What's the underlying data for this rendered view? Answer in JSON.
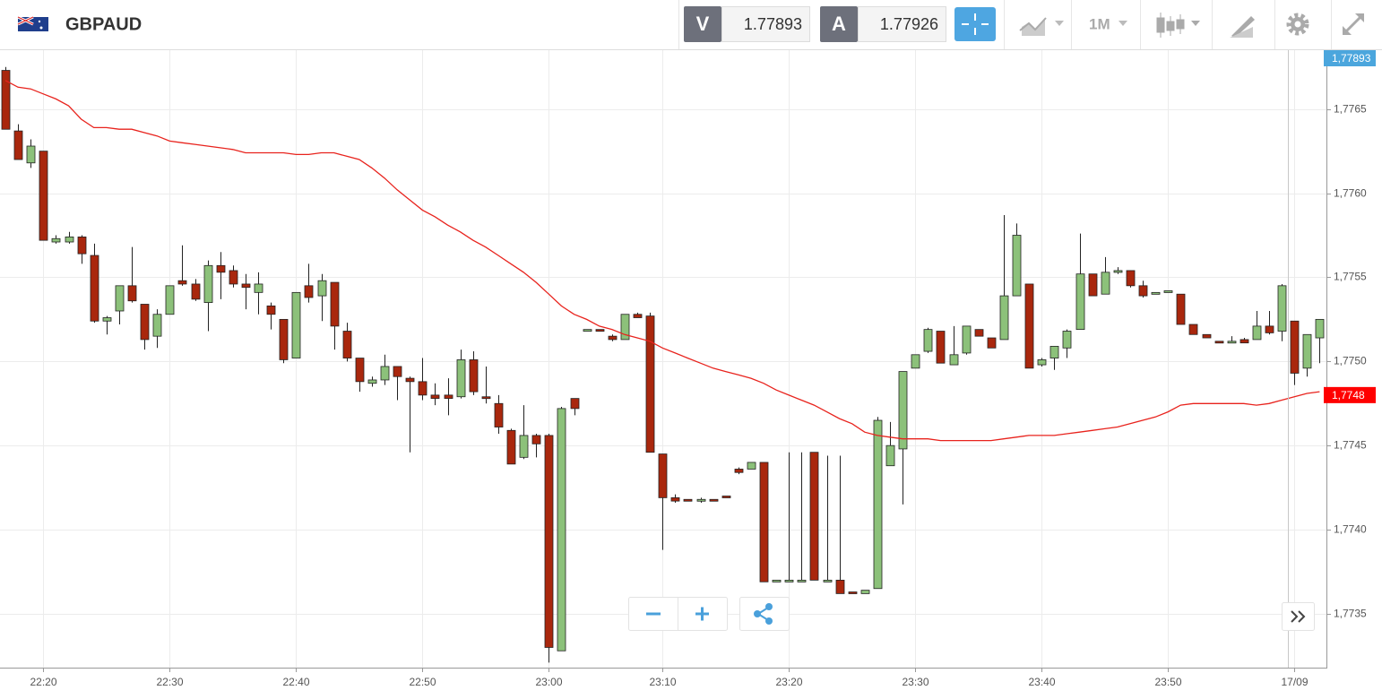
{
  "toolbar": {
    "symbol": "GBPAUD",
    "bid_label": "V",
    "bid": 1.77893,
    "ask_label": "A",
    "ask": 1.77926,
    "timeframe": "1M"
  },
  "chart_data": {
    "type": "candlestick",
    "categories": [
      null,
      null,
      null,
      "22:20",
      null,
      null,
      null,
      null,
      null,
      null,
      null,
      null,
      null,
      "22:30",
      null,
      null,
      null,
      null,
      null,
      null,
      null,
      null,
      null,
      "22:40",
      null,
      null,
      null,
      null,
      null,
      null,
      null,
      null,
      null,
      "22:50",
      null,
      null,
      null,
      null,
      null,
      null,
      null,
      null,
      null,
      "23:00",
      null,
      null,
      null,
      null,
      null,
      null,
      null,
      null,
      "23:10",
      null,
      null,
      null,
      null,
      null,
      null,
      null,
      null,
      null,
      "23:20",
      null,
      null,
      null,
      null,
      null,
      null,
      null,
      null,
      null,
      "23:30",
      null,
      null,
      null,
      null,
      null,
      null,
      null,
      null,
      null,
      "23:40",
      null,
      null,
      null,
      null,
      null,
      null,
      null,
      null,
      null,
      "23:50",
      null,
      null,
      null,
      null,
      null,
      null,
      null,
      null,
      null,
      "17/09",
      null,
      null
    ],
    "open": [
      1.77673,
      1.77637,
      1.77618,
      1.77625,
      1.77571,
      1.77571,
      1.77574,
      1.77563,
      1.77524,
      1.7753,
      1.77545,
      1.77534,
      1.77515,
      1.77528,
      1.77548,
      1.77546,
      1.77535,
      1.77557,
      1.77554,
      1.77546,
      1.77541,
      1.77533,
      1.77525,
      1.77502,
      1.77545,
      1.77539,
      1.77547,
      1.77518,
      1.77502,
      1.77487,
      1.77489,
      1.77497,
      1.7749,
      1.77488,
      1.7748,
      1.7748,
      1.77479,
      1.77501,
      1.77479,
      1.77475,
      1.77459,
      1.77443,
      1.77456,
      1.77456,
      1.77328,
      1.77478,
      1.77519,
      1.77519,
      1.77515,
      1.77513,
      1.77528,
      1.77527,
      1.77445,
      1.77419,
      1.77418,
      1.77417,
      1.77418,
      1.7742,
      1.77436,
      1.77436,
      1.7744,
      1.77369,
      1.7737,
      1.7737,
      1.77446,
      1.7737,
      1.7737,
      1.77363,
      1.77362,
      1.77365,
      1.77438,
      1.77448,
      1.77496,
      1.77506,
      1.77518,
      1.77498,
      1.77505,
      1.77519,
      1.77514,
      1.77513,
      1.77539,
      1.77546,
      1.77498,
      1.77502,
      1.77508,
      1.77519,
      1.77552,
      1.7754,
      1.77553,
      1.77554,
      1.77545,
      1.7754,
      1.77541,
      1.7754,
      1.77522,
      1.77516,
      1.77512,
      1.77511,
      1.77513,
      1.77513,
      1.77521,
      1.77518,
      1.77524,
      1.77496,
      1.77514
    ],
    "high": [
      1.77675,
      1.77641,
      1.77632,
      1.77625,
      1.77575,
      1.77577,
      1.77575,
      1.7757,
      1.77527,
      1.77545,
      1.77568,
      1.77534,
      1.77531,
      1.77545,
      1.77569,
      1.77549,
      1.7756,
      1.77565,
      1.77557,
      1.77552,
      1.77553,
      1.77535,
      1.77525,
      1.77541,
      1.77558,
      1.77552,
      1.77547,
      1.77523,
      1.77502,
      1.77491,
      1.77504,
      1.77497,
      1.77491,
      1.77502,
      1.77487,
      1.7749,
      1.77507,
      1.77506,
      1.77497,
      1.7748,
      1.7746,
      1.77474,
      1.77457,
      1.77457,
      1.77473,
      1.77478,
      1.77519,
      1.77519,
      1.77516,
      1.77528,
      1.77529,
      1.77529,
      1.77445,
      1.77421,
      1.77418,
      1.77419,
      1.77418,
      1.7742,
      1.77437,
      1.7744,
      1.7744,
      1.7737,
      1.77446,
      1.77446,
      1.77446,
      1.77444,
      1.77444,
      1.77363,
      1.77364,
      1.77467,
      1.77464,
      1.77494,
      1.77504,
      1.7752,
      1.77518,
      1.77521,
      1.77521,
      1.77519,
      1.77514,
      1.77587,
      1.77582,
      1.77546,
      1.77502,
      1.77509,
      1.77519,
      1.77576,
      1.77552,
      1.77562,
      1.77556,
      1.77554,
      1.77548,
      1.77541,
      1.77542,
      1.7754,
      1.77522,
      1.77516,
      1.77512,
      1.77515,
      1.77514,
      1.7753,
      1.7753,
      1.77546,
      1.77524,
      1.77516,
      1.77525
    ],
    "low": [
      1.77638,
      1.7762,
      1.77615,
      1.77572,
      1.7757,
      1.7757,
      1.77558,
      1.77523,
      1.77516,
      1.77522,
      1.77535,
      1.77507,
      1.77508,
      1.77528,
      1.77545,
      1.77536,
      1.77518,
      1.77537,
      1.77544,
      1.77531,
      1.77528,
      1.77519,
      1.77499,
      1.77502,
      1.77535,
      1.77524,
      1.77507,
      1.775,
      1.77482,
      1.77485,
      1.77486,
      1.77477,
      1.77446,
      1.77477,
      1.77474,
      1.77468,
      1.77478,
      1.7748,
      1.77475,
      1.77457,
      1.77439,
      1.77442,
      1.77443,
      1.77321,
      1.77328,
      1.77468,
      1.77519,
      1.77518,
      1.77512,
      1.77513,
      1.77526,
      1.77446,
      1.77388,
      1.77416,
      1.77417,
      1.77416,
      1.77417,
      1.77419,
      1.77433,
      1.77436,
      1.77369,
      1.77369,
      1.7737,
      1.7737,
      1.7737,
      1.7737,
      1.77362,
      1.77362,
      1.77362,
      1.77365,
      1.77438,
      1.77415,
      1.77496,
      1.77505,
      1.77499,
      1.77498,
      1.77504,
      1.77515,
      1.77508,
      1.77513,
      1.77539,
      1.77496,
      1.77497,
      1.77495,
      1.77502,
      1.77519,
      1.77539,
      1.7754,
      1.77552,
      1.77544,
      1.77538,
      1.7754,
      1.77541,
      1.77522,
      1.77516,
      1.77514,
      1.77511,
      1.77511,
      1.77511,
      1.77513,
      1.77516,
      1.77512,
      1.77486,
      1.77491,
      1.77499
    ],
    "close": [
      1.77638,
      1.7762,
      1.77628,
      1.77572,
      1.77573,
      1.77574,
      1.77564,
      1.77524,
      1.77526,
      1.77545,
      1.77536,
      1.77513,
      1.77528,
      1.77545,
      1.77546,
      1.77537,
      1.77557,
      1.77553,
      1.77546,
      1.77544,
      1.77546,
      1.77528,
      1.77501,
      1.77541,
      1.77538,
      1.77548,
      1.77521,
      1.77502,
      1.77488,
      1.77489,
      1.77497,
      1.77491,
      1.77488,
      1.7748,
      1.77478,
      1.77478,
      1.77501,
      1.77482,
      1.77478,
      1.77461,
      1.77439,
      1.77456,
      1.77451,
      1.7733,
      1.77472,
      1.77472,
      1.77519,
      1.77518,
      1.77513,
      1.77528,
      1.77526,
      1.77446,
      1.77419,
      1.77417,
      1.77417,
      1.77418,
      1.77417,
      1.77419,
      1.77434,
      1.7744,
      1.77369,
      1.7737,
      1.7737,
      1.7737,
      1.7737,
      1.7737,
      1.77362,
      1.77362,
      1.77364,
      1.77465,
      1.7745,
      1.77494,
      1.77504,
      1.77519,
      1.77499,
      1.77504,
      1.77521,
      1.77515,
      1.77508,
      1.77539,
      1.77575,
      1.77496,
      1.77501,
      1.77509,
      1.77518,
      1.77552,
      1.77539,
      1.77553,
      1.77554,
      1.77545,
      1.77539,
      1.77541,
      1.77542,
      1.77522,
      1.77516,
      1.77514,
      1.77511,
      1.77512,
      1.77511,
      1.77521,
      1.77517,
      1.77545,
      1.77493,
      1.77516,
      1.77525
    ],
    "up_color": "#8cc17a",
    "down_color": "#a9270d",
    "overlay": {
      "color": "#e8231d",
      "values": [
        1.77667,
        1.77663,
        1.77662,
        1.77659,
        1.77656,
        1.77652,
        1.77644,
        1.77639,
        1.77639,
        1.77638,
        1.77638,
        1.77636,
        1.77634,
        1.77631,
        1.7763,
        1.77629,
        1.77628,
        1.77627,
        1.77626,
        1.77624,
        1.77624,
        1.77624,
        1.77624,
        1.77623,
        1.77623,
        1.77624,
        1.77624,
        1.77622,
        1.7762,
        1.77615,
        1.77609,
        1.77602,
        1.77596,
        1.7759,
        1.77586,
        1.77581,
        1.77577,
        1.77572,
        1.77568,
        1.77563,
        1.77558,
        1.77553,
        1.77547,
        1.7754,
        1.77533,
        1.77528,
        1.77525,
        1.77521,
        1.77519,
        1.77516,
        1.77514,
        1.77512,
        1.77508,
        1.77505,
        1.77502,
        1.77499,
        1.77496,
        1.77494,
        1.77492,
        1.7749,
        1.77487,
        1.77483,
        1.7748,
        1.77477,
        1.77474,
        1.7747,
        1.77466,
        1.77463,
        1.77458,
        1.77456,
        1.77455,
        1.77454,
        1.77454,
        1.77454,
        1.77453,
        1.77453,
        1.77453,
        1.77453,
        1.77453,
        1.77454,
        1.77455,
        1.77456,
        1.77456,
        1.77456,
        1.77457,
        1.77458,
        1.77459,
        1.7746,
        1.77461,
        1.77463,
        1.77465,
        1.77467,
        1.7747,
        1.77474,
        1.77475,
        1.77475,
        1.77475,
        1.77475,
        1.77475,
        1.77474,
        1.77475,
        1.77477,
        1.77479,
        1.77481,
        1.77482
      ]
    },
    "ylim": [
      1.77318,
      1.77685
    ],
    "yticks": [
      {
        "value": 1.7735,
        "label": "1,7735"
      },
      {
        "value": 1.774,
        "label": "1,7740"
      },
      {
        "value": 1.7745,
        "label": "1,7745"
      },
      {
        "value": 1.775,
        "label": "1,7750"
      },
      {
        "value": 1.7755,
        "label": "1,7755"
      },
      {
        "value": 1.776,
        "label": "1,7760"
      },
      {
        "value": 1.7765,
        "label": "1,7765"
      }
    ],
    "grid": true,
    "price_tags": [
      {
        "value": 1.77893,
        "label": "1,77893",
        "color": "#4ba6dd"
      },
      {
        "value": 1.7748,
        "label": "1,7748",
        "color": "#ff0000"
      }
    ]
  }
}
